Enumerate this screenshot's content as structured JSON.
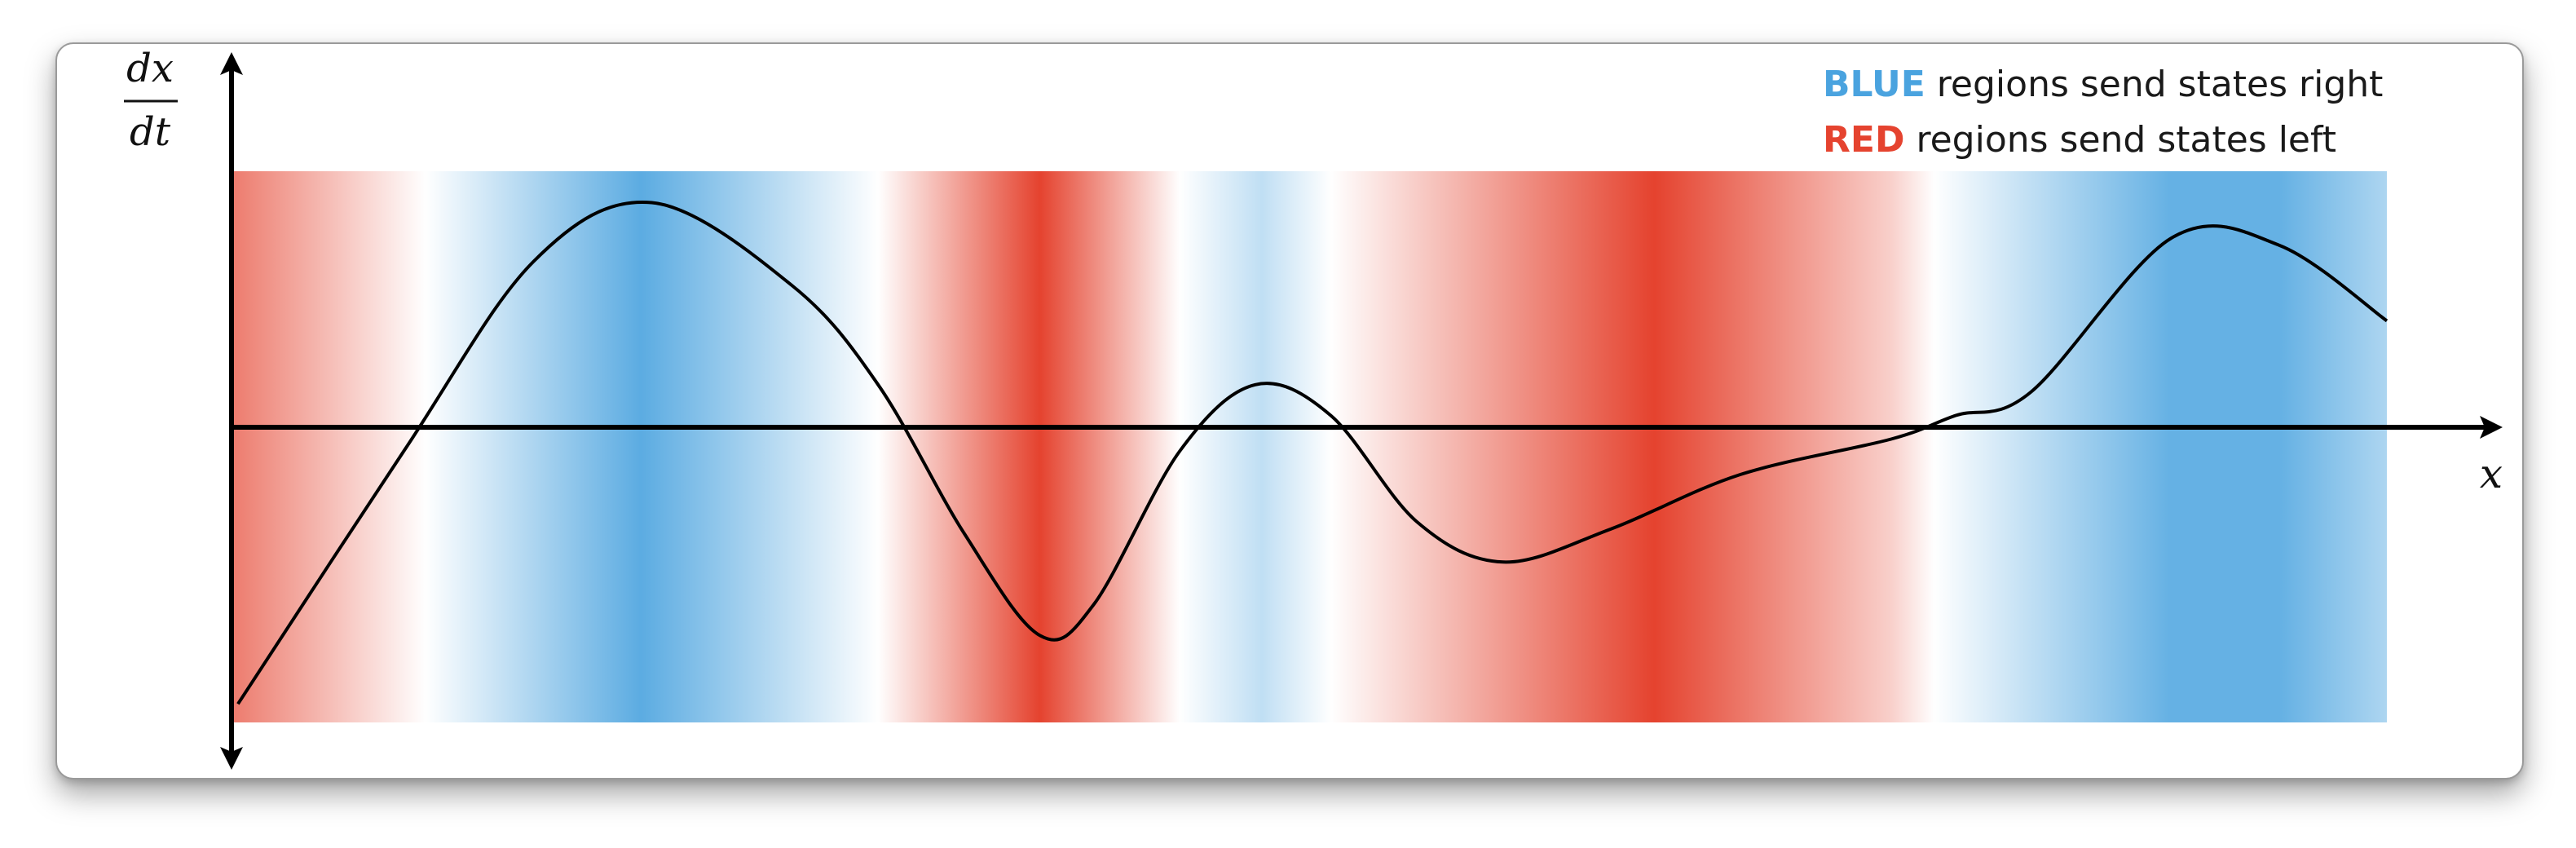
{
  "axes": {
    "y_label_numerator": "dx",
    "y_label_denominator": "dt",
    "x_label": "x"
  },
  "legend": [
    {
      "keyword": "BLUE",
      "text": "regions send states right",
      "color": "#4aa3df"
    },
    {
      "keyword": "RED",
      "text": "regions send states left",
      "color": "#e5432f"
    }
  ],
  "colors": {
    "blue": "#4aa3df",
    "red": "#e5432f",
    "axis": "#000000",
    "curve": "#000000"
  },
  "chart_data": {
    "type": "line",
    "description_curve": "dx/dt as a function of x; positive where band is blue, negative where band is red",
    "x_range": [
      0,
      1
    ],
    "y_range": [
      -1,
      1
    ],
    "curve": [
      [
        0.003,
        -1.17
      ],
      [
        0.08,
        -0.1
      ],
      [
        0.14,
        0.7
      ],
      [
        0.195,
        0.95
      ],
      [
        0.26,
        0.6
      ],
      [
        0.3,
        0.18
      ],
      [
        0.34,
        -0.45
      ],
      [
        0.375,
        -0.88
      ],
      [
        0.4,
        -0.75
      ],
      [
        0.44,
        -0.1
      ],
      [
        0.475,
        0.18
      ],
      [
        0.51,
        0.05
      ],
      [
        0.55,
        -0.4
      ],
      [
        0.59,
        -0.57
      ],
      [
        0.64,
        -0.43
      ],
      [
        0.7,
        -0.2
      ],
      [
        0.77,
        -0.05
      ],
      [
        0.8,
        0.05
      ],
      [
        0.835,
        0.15
      ],
      [
        0.9,
        0.8
      ],
      [
        0.95,
        0.77
      ],
      [
        1.0,
        0.45
      ]
    ],
    "bands": [
      {
        "x": 0.0,
        "value": -0.7
      },
      {
        "x": 0.09,
        "value": 0.0
      },
      {
        "x": 0.19,
        "value": 0.9
      },
      {
        "x": 0.3,
        "value": 0.0
      },
      {
        "x": 0.375,
        "value": -1.0
      },
      {
        "x": 0.44,
        "value": 0.0
      },
      {
        "x": 0.478,
        "value": 0.35
      },
      {
        "x": 0.51,
        "value": 0.0
      },
      {
        "x": 0.66,
        "value": -1.0
      },
      {
        "x": 0.77,
        "value": -0.25
      },
      {
        "x": 0.79,
        "value": 0.0
      },
      {
        "x": 0.9,
        "value": 0.85
      },
      {
        "x": 0.95,
        "value": 0.85
      },
      {
        "x": 1.0,
        "value": 0.45
      }
    ]
  }
}
